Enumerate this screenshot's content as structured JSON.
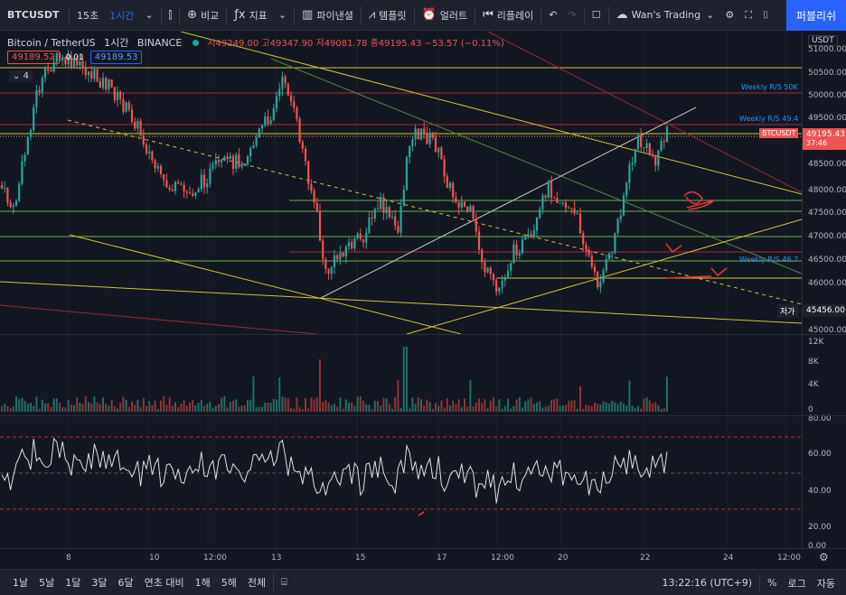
{
  "toolbar": {
    "symbol": "BTCUSDT",
    "interval_a": "15초",
    "interval_b": "1시간",
    "compare_label": "비교",
    "indicator_label": "지표",
    "pine_label": "파이낸셜",
    "template_label": "템플릿",
    "alert_label": "얼러트",
    "replay_label": "리플레이",
    "layout_name": "Wan's Trading",
    "publish_label": "퍼블리쉬"
  },
  "legend": {
    "title": "Bitcoin / TetherUS",
    "interval": "1시간",
    "exchange": "BINANCE",
    "ohlc": "시49249.00 고49347.90 저49081.78 종49195.43 −53.57 (−0.11%)",
    "bid": "49189.52",
    "spread": "0.01",
    "ask": "49189.53",
    "indicators_count": "4"
  },
  "price_axis": {
    "currency": "USDT",
    "ticks": [
      "51000.00",
      "50500.00",
      "50000.00",
      "49500.00",
      "49000.00",
      "48500.00",
      "48000.00",
      "47500.00",
      "47000.00",
      "46500.00",
      "46000.00",
      "45500.00",
      "45000.00"
    ],
    "current_symbol": "BTCUSDT",
    "current_price": "49195.43",
    "countdown": "37:46",
    "low_label": "저가",
    "low_price": "45456.00"
  },
  "annotations": {
    "weekly_50k": "Weekly R/S 50K",
    "weekly_494": "Weekly R/S 49.4",
    "weekly_467": "Weekly R/S 46.7"
  },
  "volume_axis": {
    "ticks": [
      "12K",
      "8K",
      "4K",
      "0"
    ]
  },
  "rsi_axis": {
    "ticks": [
      "80.00",
      "60.00",
      "40.00",
      "20.00",
      "0.00"
    ]
  },
  "time_axis": {
    "labels": [
      "8",
      "10",
      "12:00",
      "13",
      "15",
      "17",
      "12:00",
      "20",
      "22",
      "24",
      "12:00"
    ]
  },
  "bottom_bar": {
    "ranges": [
      "1날",
      "5날",
      "1달",
      "3달",
      "6달",
      "연초 대비",
      "1해",
      "5해",
      "전체"
    ],
    "clock": "13:22:16 (UTC+9)",
    "percent": "%",
    "log": "로그",
    "auto": "자동"
  },
  "colors": {
    "background": "#131722",
    "up": "#26a69a",
    "down": "#ef5350",
    "accent": "#2962ff"
  }
}
